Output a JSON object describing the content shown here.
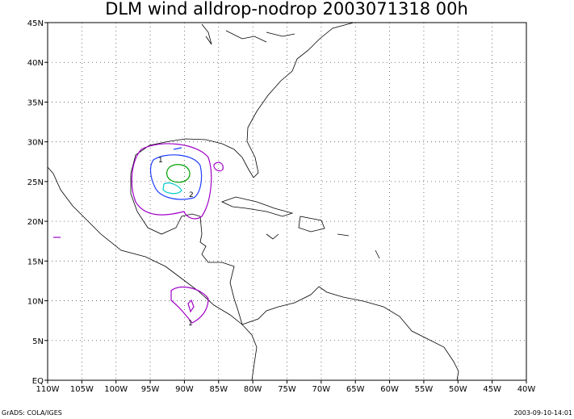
{
  "title": "DLM wind alldrop-nodrop 2003071318 00h",
  "map": {
    "xlim": [
      -110,
      -40
    ],
    "ylim": [
      0,
      45
    ],
    "xticks": [
      {
        "value": -110,
        "label": "110W"
      },
      {
        "value": -105,
        "label": "105W"
      },
      {
        "value": -100,
        "label": "100W"
      },
      {
        "value": -95,
        "label": "95W"
      },
      {
        "value": -90,
        "label": "90W"
      },
      {
        "value": -85,
        "label": "85W"
      },
      {
        "value": -80,
        "label": "80W"
      },
      {
        "value": -75,
        "label": "75W"
      },
      {
        "value": -70,
        "label": "70W"
      },
      {
        "value": -65,
        "label": "65W"
      },
      {
        "value": -60,
        "label": "60W"
      },
      {
        "value": -55,
        "label": "55W"
      },
      {
        "value": -50,
        "label": "50W"
      },
      {
        "value": -45,
        "label": "45W"
      },
      {
        "value": -40,
        "label": "40W"
      }
    ],
    "yticks": [
      {
        "value": 0,
        "label": "EQ"
      },
      {
        "value": 5,
        "label": "5N"
      },
      {
        "value": 10,
        "label": "10N"
      },
      {
        "value": 15,
        "label": "15N"
      },
      {
        "value": 20,
        "label": "20N"
      },
      {
        "value": 25,
        "label": "25N"
      },
      {
        "value": 30,
        "label": "30N"
      },
      {
        "value": 35,
        "label": "35N"
      },
      {
        "value": 40,
        "label": "40N"
      },
      {
        "value": 45,
        "label": "45N"
      }
    ],
    "contour_labels": [
      "1",
      "2",
      "1"
    ]
  },
  "footer": {
    "left": "GrADS: COLA/IGES",
    "right": "2003-09-10-14:01"
  }
}
